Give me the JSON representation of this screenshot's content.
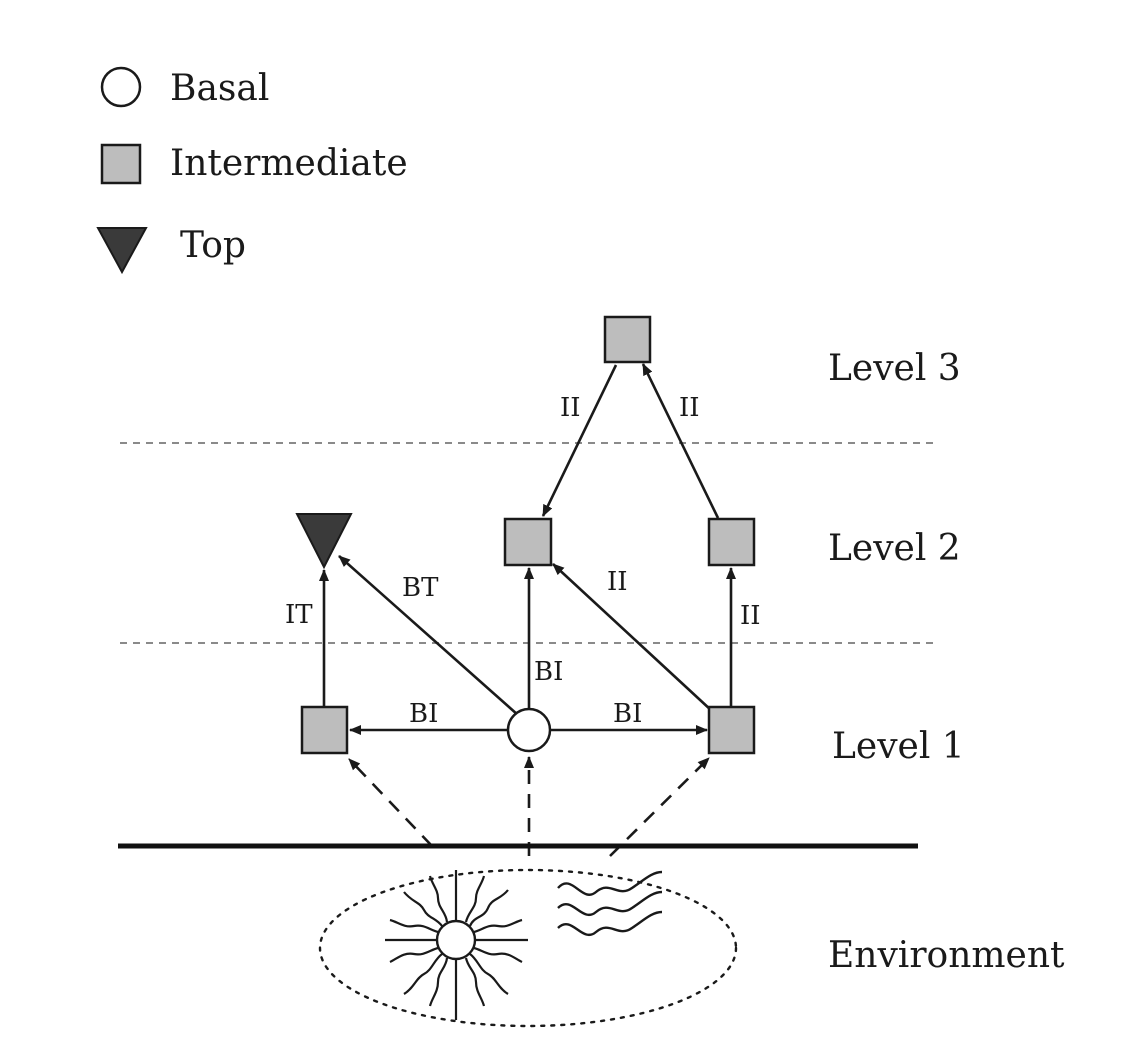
{
  "legend": {
    "basal": "Basal",
    "intermediate": "Intermediate",
    "top": "Top"
  },
  "levels": {
    "level3": "Level 3",
    "level2": "Level 2",
    "level1": "Level 1",
    "environment": "Environment"
  },
  "edges": {
    "ii_left_l3": "II",
    "ii_right_l3": "II",
    "it": "IT",
    "bt": "BT",
    "ii_mid": "II",
    "ii_right": "II",
    "bi_center_up": "BI",
    "bi_left": "BI",
    "bi_right": "BI"
  },
  "colors": {
    "intermediate_fill": "#bdbdbd",
    "top_fill": "#3a3a3a",
    "basal_fill": "#ffffff",
    "ink": "#1a1a1a"
  },
  "icons": {
    "basal": "circle-icon",
    "intermediate": "square-icon",
    "top": "triangle-down-icon",
    "sun": "sun-icon",
    "water": "water-waves-icon"
  }
}
